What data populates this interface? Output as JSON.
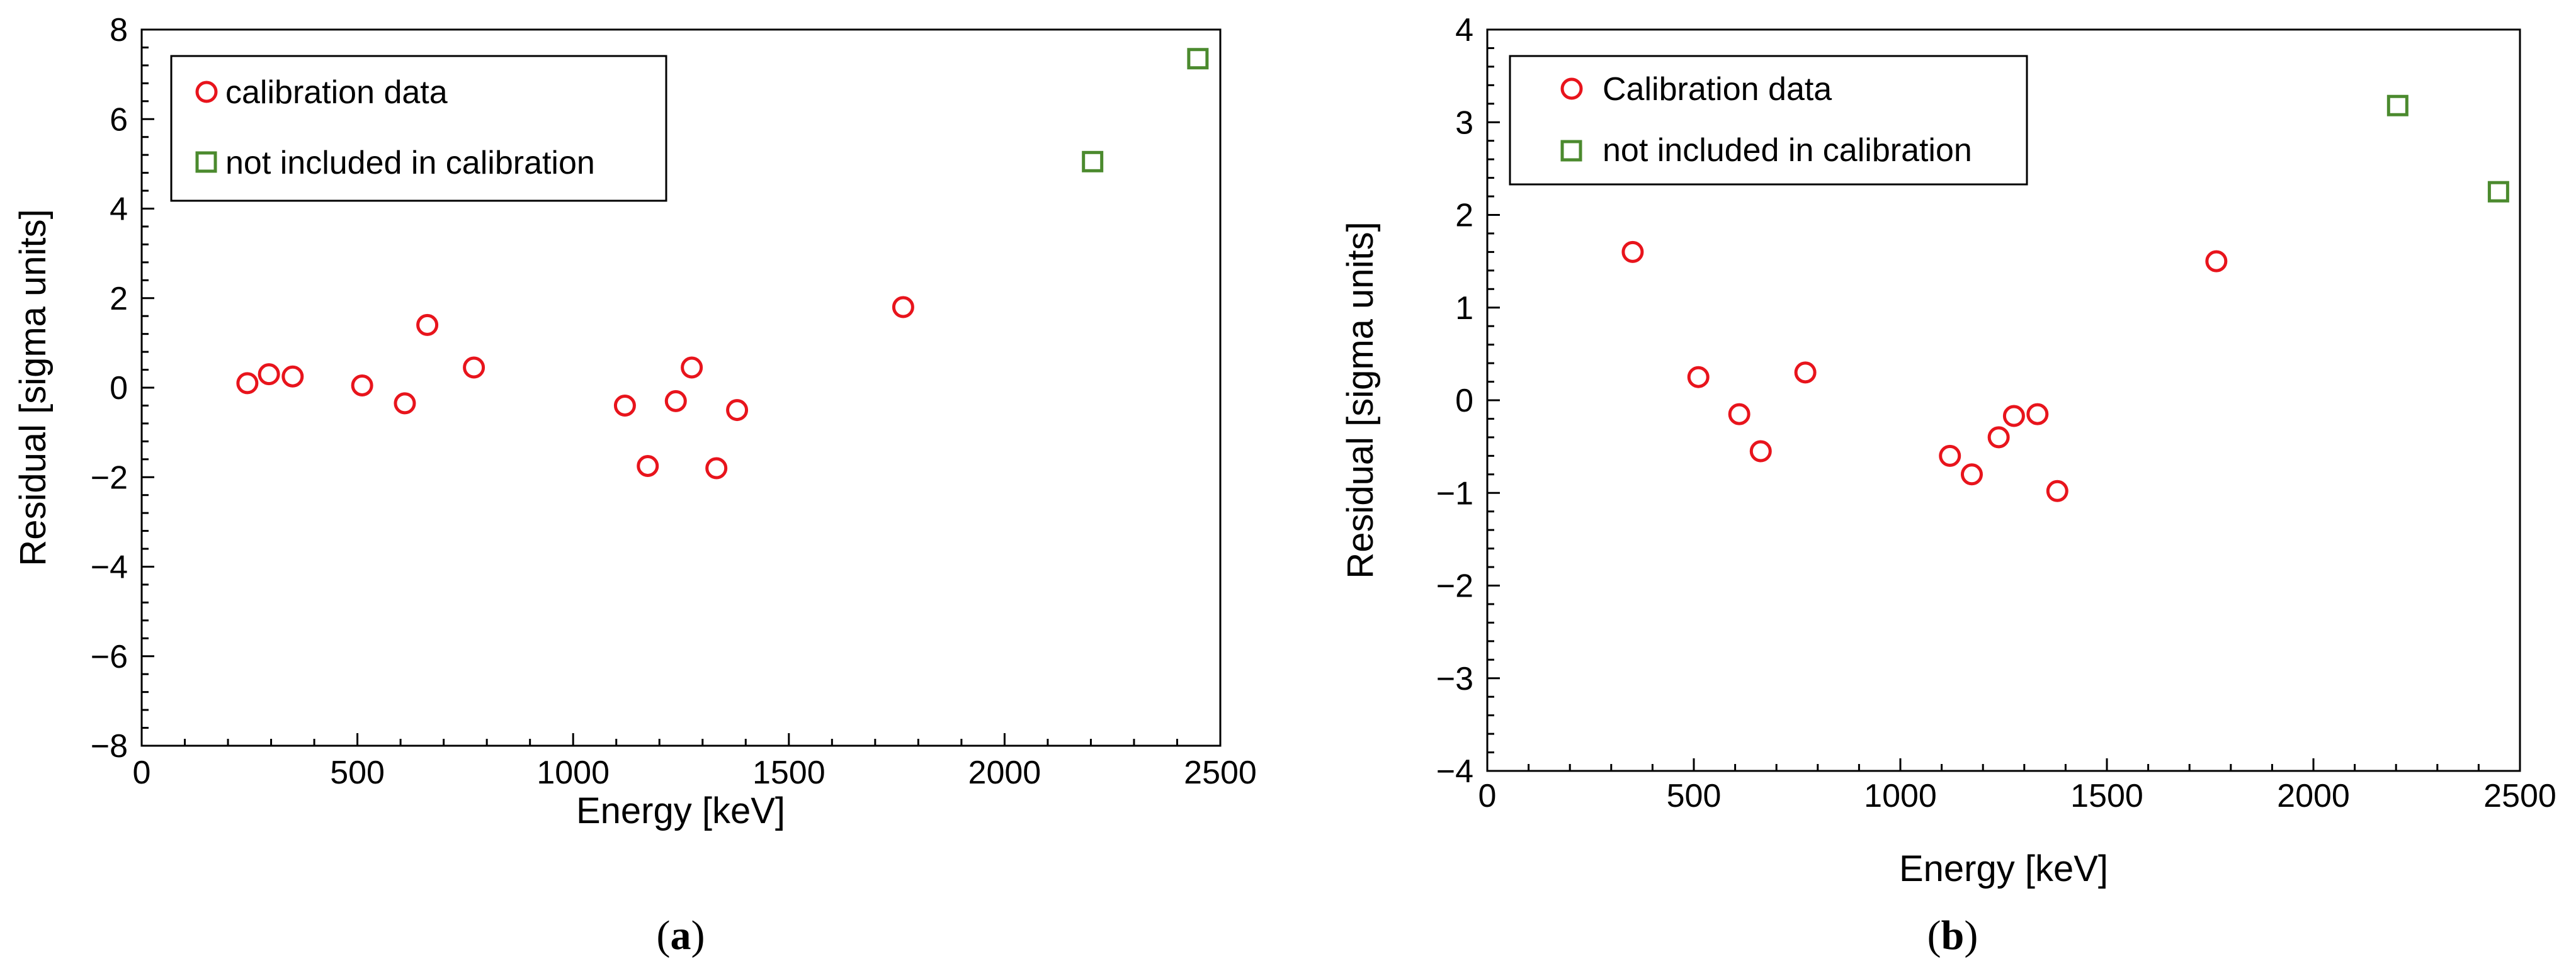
{
  "colors": {
    "calibration": "#e8141c",
    "excluded": "#4b8a2e",
    "axis": "#000000"
  },
  "charts": [
    {
      "panel_label": "a",
      "marker_icon_calibration": "circle-marker-icon",
      "marker_icon_excluded": "square-marker-icon"
    },
    {
      "panel_label": "b",
      "marker_icon_calibration": "circle-marker-icon",
      "marker_icon_excluded": "square-marker-icon"
    }
  ],
  "chart_data": [
    {
      "type": "scatter",
      "xlabel": "Energy [keV]",
      "ylabel": "Residual [sigma units]",
      "xlim": [
        0,
        2500
      ],
      "ylim": [
        -8,
        8
      ],
      "xticks": [
        0,
        500,
        1000,
        1500,
        2000,
        2500
      ],
      "yticks": [
        -8,
        -6,
        -4,
        -2,
        0,
        2,
        4,
        6,
        8
      ],
      "grid": false,
      "legend_position": "top-left",
      "series": [
        {
          "name": "calibration data",
          "marker": "circle",
          "points": [
            [
              245,
              0.1
            ],
            [
              295,
              0.3
            ],
            [
              350,
              0.25
            ],
            [
              511,
              0.05
            ],
            [
              610,
              -0.35
            ],
            [
              662,
              1.4
            ],
            [
              770,
              0.45
            ],
            [
              1120,
              -0.4
            ],
            [
              1173,
              -1.75
            ],
            [
              1238,
              -0.3
            ],
            [
              1275,
              0.45
            ],
            [
              1332,
              -1.8
            ],
            [
              1380,
              -0.5
            ],
            [
              1765,
              1.8
            ]
          ]
        },
        {
          "name": "not included in calibration",
          "marker": "square",
          "points": [
            [
              2204,
              5.05
            ],
            [
              2448,
              7.35
            ]
          ]
        }
      ]
    },
    {
      "type": "scatter",
      "xlabel": "Energy [keV]",
      "ylabel": "Residual [sigma units]",
      "xlim": [
        0,
        2500
      ],
      "ylim": [
        -4,
        4
      ],
      "xticks": [
        0,
        500,
        1000,
        1500,
        2000,
        2500
      ],
      "yticks": [
        -4,
        -3,
        -2,
        -1,
        0,
        1,
        2,
        3,
        4
      ],
      "grid": false,
      "legend_position": "top-left",
      "series": [
        {
          "name": "Calibration data",
          "marker": "circle",
          "points": [
            [
              352,
              1.6
            ],
            [
              511,
              0.25
            ],
            [
              610,
              -0.15
            ],
            [
              662,
              -0.55
            ],
            [
              770,
              0.3
            ],
            [
              1120,
              -0.6
            ],
            [
              1173,
              -0.8
            ],
            [
              1238,
              -0.4
            ],
            [
              1275,
              -0.17
            ],
            [
              1332,
              -0.15
            ],
            [
              1380,
              -0.98
            ],
            [
              1765,
              1.5
            ]
          ]
        },
        {
          "name": "not included in calibration",
          "marker": "square",
          "points": [
            [
              2204,
              3.18
            ],
            [
              2448,
              2.25
            ]
          ]
        }
      ]
    }
  ]
}
